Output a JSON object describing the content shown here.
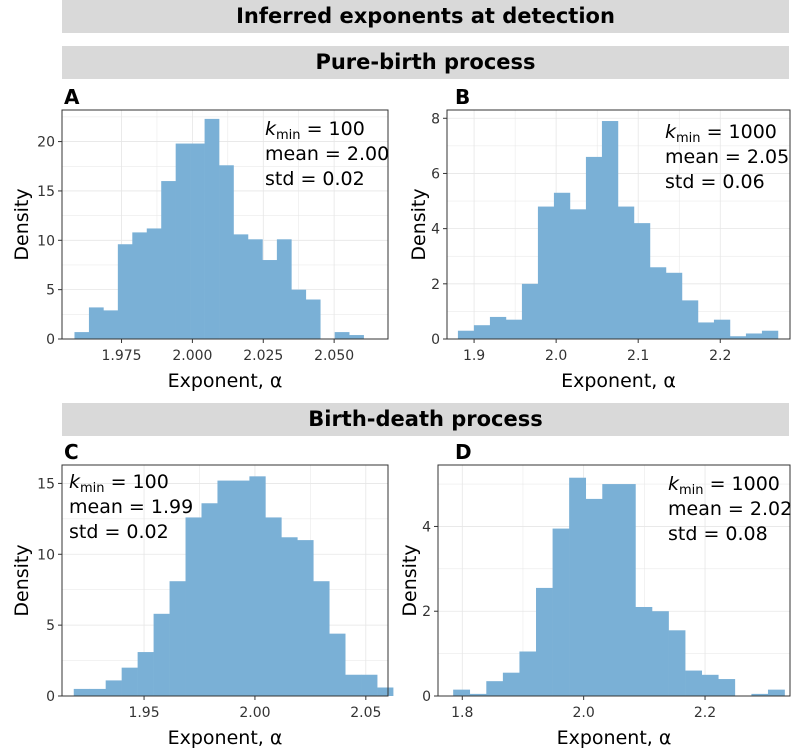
{
  "figure": {
    "title": "Inferred exponents at detection",
    "row_labels": [
      "Pure-birth process",
      "Birth-death process"
    ],
    "bar_color": "#7ab0d6",
    "grid_color": "#e6e6e6"
  },
  "chart_data": [
    {
      "type": "bar",
      "panel": "A",
      "title": "",
      "xlabel": "Exponent, α",
      "ylabel": "Density",
      "xlim": [
        1.954,
        2.069
      ],
      "ylim": [
        0,
        23.2
      ],
      "xticks": [
        1.975,
        2.0,
        2.025,
        2.05
      ],
      "xtick_labels": [
        "1.975",
        "2.000",
        "2.025",
        "2.050"
      ],
      "yticks": [
        0,
        5,
        10,
        15,
        20
      ],
      "bin_start": 1.9584,
      "bin_width": 0.0051,
      "values": [
        0.7,
        3.2,
        2.9,
        9.6,
        10.8,
        11.2,
        16.0,
        19.8,
        19.8,
        22.3,
        17.6,
        10.6,
        10.1,
        8.0,
        10.1,
        5.0,
        4.0,
        0,
        0.7,
        0.4
      ],
      "annotation": {
        "k_label": "k",
        "k_sub": "min",
        "k_value": "= 100",
        "mean": "mean = 2.00",
        "std": "std = 0.02"
      }
    },
    {
      "type": "bar",
      "panel": "B",
      "title": "",
      "xlabel": "Exponent, α",
      "ylabel": "Density",
      "xlim": [
        1.867,
        2.285
      ],
      "ylim": [
        0,
        8.3
      ],
      "xticks": [
        1.9,
        2.0,
        2.1,
        2.2
      ],
      "xtick_labels": [
        "1.9",
        "2.0",
        "2.1",
        "2.2"
      ],
      "yticks": [
        0,
        2,
        4,
        6,
        8
      ],
      "bin_start": 1.8803,
      "bin_width": 0.0195,
      "values": [
        0.3,
        0.5,
        0.8,
        0.7,
        2.0,
        4.8,
        5.3,
        4.7,
        6.6,
        7.9,
        4.8,
        4.2,
        2.6,
        2.4,
        1.4,
        0.6,
        0.7,
        0.1,
        0.2,
        0.3
      ],
      "annotation": {
        "k_label": "k",
        "k_sub": "min",
        "k_value": "= 1000",
        "mean": "mean = 2.05",
        "std": "std = 0.06"
      }
    },
    {
      "type": "bar",
      "panel": "C",
      "title": "",
      "xlabel": "Exponent, α",
      "ylabel": "Density",
      "xlim": [
        1.913,
        2.06
      ],
      "ylim": [
        0,
        16.3
      ],
      "xticks": [
        1.95,
        2.0,
        2.05
      ],
      "xtick_labels": [
        "1.95",
        "2.00",
        "2.05"
      ],
      "yticks": [
        0,
        5,
        10,
        15
      ],
      "bin_start": 1.9183,
      "bin_width": 0.0072,
      "values": [
        0.5,
        0.5,
        1.1,
        2.0,
        3.1,
        5.8,
        8.1,
        12.6,
        13.6,
        15.2,
        15.2,
        15.5,
        12.6,
        11.2,
        11.0,
        8.1,
        4.4,
        1.5,
        1.5,
        0.6
      ],
      "annotation": {
        "k_label": "k",
        "k_sub": "min",
        "k_value": "= 100",
        "mean": "mean = 1.99",
        "std": "std = 0.02"
      }
    },
    {
      "type": "bar",
      "panel": "D",
      "title": "",
      "xlabel": "Exponent, α",
      "ylabel": "Density",
      "xlim": [
        1.76,
        2.34
      ],
      "ylim": [
        0,
        5.45
      ],
      "xticks": [
        1.8,
        2.0,
        2.2
      ],
      "xtick_labels": [
        "1.8",
        "2.0",
        "2.2"
      ],
      "yticks": [
        0,
        2,
        4
      ],
      "bin_start": 1.785,
      "bin_width": 0.0273,
      "values": [
        0.15,
        0.05,
        0.35,
        0.55,
        1.05,
        2.55,
        3.95,
        5.15,
        4.65,
        5.0,
        5.0,
        2.1,
        2.0,
        1.55,
        0.6,
        0.5,
        0.4,
        0,
        0.05,
        0.15
      ],
      "annotation": {
        "k_label": "k",
        "k_sub": "min",
        "k_value": "= 1000",
        "mean": "mean = 2.02",
        "std": "std = 0.08"
      }
    }
  ]
}
